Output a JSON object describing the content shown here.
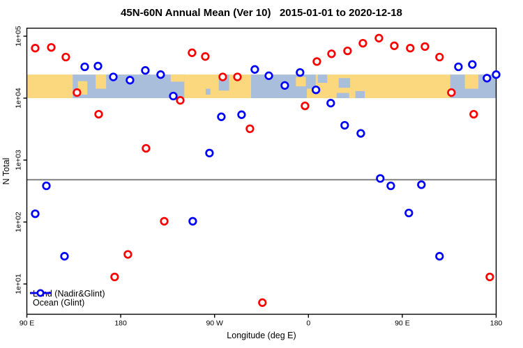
{
  "title": "45N-60N Annual Mean (Ver 10)   2015-01-01 to 2020-12-18",
  "chart_data": {
    "type": "scatter",
    "title": "45N-60N Annual Mean (Ver 10)   2015-01-01 to 2020-12-18",
    "xlabel": "Longitude (deg E)",
    "ylabel": "N Total",
    "x_axis": {
      "tick_positions_deg": [
        0,
        90,
        180,
        270,
        360,
        450
      ],
      "tick_labels": [
        "90 E",
        "180",
        "90 W",
        "0",
        "90 E",
        "180"
      ],
      "span_deg": [
        0,
        450
      ]
    },
    "y_axis": {
      "scale": "log10",
      "tick_values": [
        10,
        100,
        1000,
        10000,
        100000
      ],
      "tick_labels": [
        "1e+01",
        "1e+02",
        "1e+03",
        "1e+04",
        "1e+05"
      ],
      "ylim": [
        3,
        135000
      ]
    },
    "reference_line": {
      "value": 500,
      "color": "#808080"
    },
    "land_ocean_band": {
      "value_range": [
        10000,
        24000
      ],
      "land_color": "#FBD87E",
      "ocean_color": "#A9BEDB",
      "ocean_patches": [
        {
          "x": [
            44,
            151
          ],
          "y": [
            0,
            1
          ]
        },
        {
          "x": [
            171.5,
            176
          ],
          "y": [
            0.6,
            0.85
          ]
        },
        {
          "x": [
            184,
            194
          ],
          "y": [
            0,
            0.68
          ]
        },
        {
          "x": [
            215,
            277
          ],
          "y": [
            0,
            1
          ]
        },
        {
          "x": [
            279,
            288
          ],
          "y": [
            0,
            0.35
          ]
        },
        {
          "x": [
            299,
            310
          ],
          "y": [
            0.15,
            0.56
          ]
        },
        {
          "x": [
            297,
            309
          ],
          "y": [
            0.78,
            1
          ]
        },
        {
          "x": [
            315,
            324
          ],
          "y": [
            0.7,
            1
          ]
        },
        {
          "x": [
            406,
            450
          ],
          "y": [
            0,
            1
          ]
        }
      ],
      "land_patches": [
        {
          "x": [
            49,
            58
          ],
          "y": [
            0.28,
            0.85
          ]
        },
        {
          "x": [
            66,
            76
          ],
          "y": [
            0,
            0.6
          ]
        },
        {
          "x": [
            138,
            151
          ],
          "y": [
            0,
            0.3
          ]
        },
        {
          "x": [
            258,
            267.5
          ],
          "y": [
            0.1,
            0.5
          ]
        },
        {
          "x": [
            268.5,
            277
          ],
          "y": [
            0.6,
            1
          ]
        },
        {
          "x": [
            420,
            433
          ],
          "y": [
            0,
            0.6
          ]
        }
      ]
    },
    "series": [
      {
        "name": "Land (Nadir&Glint)",
        "color": "#FF0000",
        "points": [
          [
            8,
            64000
          ],
          [
            23.4,
            66000
          ],
          [
            37.4,
            46000
          ],
          [
            48.1,
            12300
          ],
          [
            68.9,
            5500
          ],
          [
            84.2,
            13
          ],
          [
            96.9,
            30
          ],
          [
            114.3,
            1550
          ],
          [
            131.7,
            103
          ],
          [
            147.1,
            9200
          ],
          [
            158.4,
            54000
          ],
          [
            171.1,
            47000
          ],
          [
            187.8,
            22000
          ],
          [
            201.9,
            22000
          ],
          [
            213.9,
            3200
          ],
          [
            225.9,
            5
          ],
          [
            266.7,
            7500
          ],
          [
            278.1,
            39000
          ],
          [
            292.1,
            52000
          ],
          [
            307.5,
            58000
          ],
          [
            322.2,
            77000
          ],
          [
            337.6,
            93000
          ],
          [
            352.3,
            70000
          ],
          [
            367.6,
            64000
          ],
          [
            381.7,
            68000
          ],
          [
            395.7,
            46000
          ],
          [
            407.1,
            12300
          ],
          [
            428.5,
            5500
          ],
          [
            443.9,
            13
          ]
        ]
      },
      {
        "name": "Ocean (Glint)",
        "color": "#0000FF",
        "points": [
          [
            8,
            136
          ],
          [
            18.7,
            384
          ],
          [
            36.1,
            28
          ],
          [
            55.5,
            32000
          ],
          [
            68.2,
            33000
          ],
          [
            82.9,
            22000
          ],
          [
            98.9,
            19500
          ],
          [
            113.6,
            28000
          ],
          [
            128.3,
            24000
          ],
          [
            140.4,
            10800
          ],
          [
            159.1,
            103
          ],
          [
            175.1,
            1300
          ],
          [
            186.5,
            5000
          ],
          [
            205.9,
            5400
          ],
          [
            218.6,
            29000
          ],
          [
            232,
            23000
          ],
          [
            247.3,
            16000
          ],
          [
            262,
            26000
          ],
          [
            277.2,
            13600
          ],
          [
            291.4,
            8300
          ],
          [
            304.8,
            3650
          ],
          [
            320.2,
            2700
          ],
          [
            338.9,
            505
          ],
          [
            349,
            384
          ],
          [
            366.3,
            140
          ],
          [
            378.3,
            400
          ],
          [
            395.7,
            28
          ],
          [
            413.8,
            32000
          ],
          [
            427.1,
            35000
          ],
          [
            441.2,
            21000
          ],
          [
            450,
            24000
          ]
        ]
      }
    ],
    "legend_position": "bottom-left"
  }
}
